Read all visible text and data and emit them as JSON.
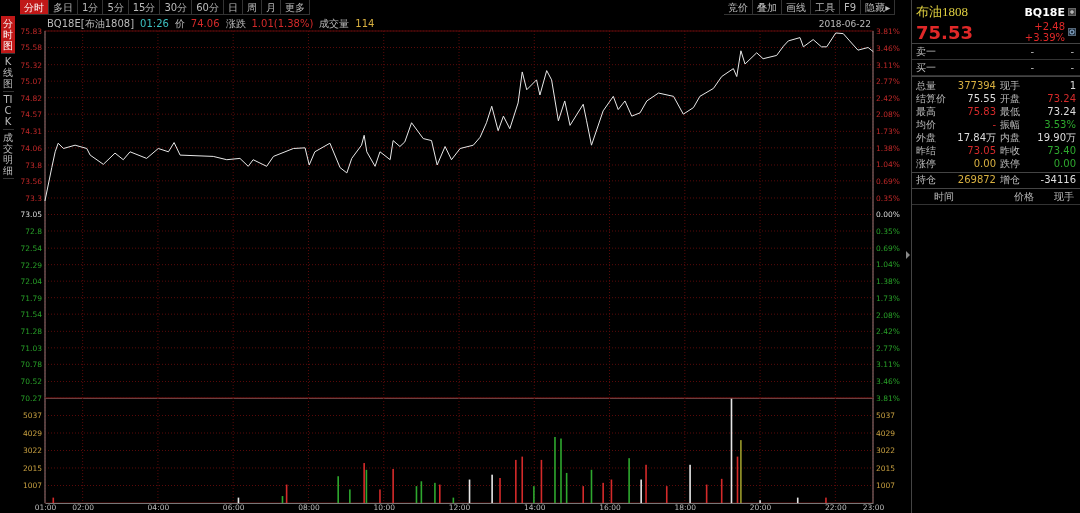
{
  "chart_data": [
    {
      "type": "line",
      "xlim": [
        1,
        23
      ],
      "xticks": [
        {
          "value": 1,
          "label": null
        },
        {
          "value": 2,
          "label": null
        },
        {
          "value": 4,
          "label": null
        },
        {
          "value": 6,
          "label": null
        },
        {
          "value": 8,
          "label": null
        },
        {
          "value": 10,
          "label": null
        },
        {
          "value": 12,
          "label": null
        },
        {
          "value": 14,
          "label": null
        },
        {
          "value": 16,
          "label": null
        },
        {
          "value": 18,
          "label": null
        },
        {
          "value": 20,
          "label": null
        },
        {
          "value": 22,
          "label": null
        },
        {
          "value": 23,
          "label": null
        }
      ],
      "ylim": [
        70.27,
        75.83
      ],
      "yticks": [
        75.83,
        75.58,
        75.32,
        75.07,
        74.82,
        74.57,
        74.31,
        74.06,
        73.8,
        73.56,
        73.3,
        73.05,
        72.8,
        72.54,
        72.29,
        72.04,
        71.79,
        71.54,
        71.28,
        71.03,
        70.78,
        70.52,
        70.27
      ],
      "y2lim": [
        -3.81,
        3.81
      ],
      "y2ticks": [
        {
          "value": 3.81,
          "label": "3.81%"
        },
        {
          "value": 3.46,
          "label": "3.46%"
        },
        {
          "value": 3.11,
          "label": "3.11%"
        },
        {
          "value": 2.77,
          "label": "2.77%"
        },
        {
          "value": 2.42,
          "label": "2.42%"
        },
        {
          "value": 2.08,
          "label": "2.08%"
        },
        {
          "value": 1.73,
          "label": "1.73%"
        },
        {
          "value": 1.38,
          "label": "1.38%"
        },
        {
          "value": 1.04,
          "label": "1.04%"
        },
        {
          "value": 0.69,
          "label": "0.69%"
        },
        {
          "value": 0.35,
          "label": "0.35%"
        },
        {
          "value": 0,
          "label": "0.00%"
        },
        {
          "value": -0.35,
          "label": "0.35%"
        },
        {
          "value": -0.69,
          "label": "0.69%"
        },
        {
          "value": -1.04,
          "label": "1.04%"
        },
        {
          "value": -1.38,
          "label": "1.38%"
        },
        {
          "value": -1.73,
          "label": "1.73%"
        },
        {
          "value": -2.08,
          "label": "2.08%"
        },
        {
          "value": -2.42,
          "label": "2.42%"
        },
        {
          "value": -2.77,
          "label": "2.77%"
        },
        {
          "value": -3.11,
          "label": "3.11%"
        },
        {
          "value": -3.46,
          "label": "3.46%"
        },
        {
          "value": -3.81,
          "label": "3.81%"
        }
      ],
      "tick_labels": "y",
      "grid": true,
      "annotations": [
        "BQ18E[布油1808]",
        "01:26",
        "价",
        "74.06",
        "涨跌",
        "1.01(1.38%)",
        "成交量",
        "114",
        "2018-06-22"
      ],
      "series": [
        {
          "color": "#e8e8e8",
          "x": [
            1.0,
            1.18,
            1.27,
            1.35,
            1.49,
            1.8,
            2.11,
            2.2,
            2.55,
            2.86,
            3.08,
            3.26,
            3.7,
            4.01,
            4.28,
            4.43,
            4.59,
            5.47,
            5.83,
            6.18,
            6.4,
            6.53,
            6.89,
            7.07,
            7.6,
            7.91,
            8.02,
            8.17,
            8.57,
            8.84,
            9.02,
            9.15,
            9.41,
            9.48,
            9.55,
            9.77,
            9.9,
            10.17,
            10.25,
            10.43,
            10.56,
            10.74,
            11.05,
            11.27,
            11.42,
            11.63,
            11.8,
            12.03,
            12.38,
            12.56,
            12.73,
            12.87,
            13.04,
            13.18,
            13.35,
            13.57,
            13.68,
            13.8,
            14.06,
            14.15,
            14.33,
            14.46,
            14.64,
            14.81,
            14.95,
            15.3,
            15.39,
            15.52,
            15.83,
            16.1,
            16.23,
            16.41,
            16.59,
            16.81,
            16.99,
            17.3,
            17.7,
            17.96,
            18.23,
            18.4,
            18.76,
            18.98,
            19.29,
            19.38,
            19.49,
            19.6,
            19.91,
            20.08,
            20.44,
            20.62,
            20.75,
            21.06,
            21.15,
            21.41,
            21.63,
            21.77,
            22.01,
            22.21,
            22.38,
            22.6,
            22.87,
            23.0
          ],
          "values": [
            73.26,
            73.76,
            74.0,
            74.13,
            74.05,
            74.1,
            74.05,
            73.95,
            73.81,
            73.98,
            73.88,
            74.0,
            73.9,
            74.05,
            74.0,
            74.14,
            73.95,
            73.93,
            73.88,
            73.9,
            73.78,
            73.88,
            73.78,
            73.93,
            74.05,
            74.06,
            73.8,
            74.0,
            74.13,
            73.76,
            73.68,
            73.9,
            74.1,
            74.25,
            74.0,
            73.78,
            74.0,
            73.88,
            74.17,
            74.08,
            74.15,
            74.44,
            74.2,
            74.17,
            73.8,
            74.08,
            73.88,
            74.05,
            74.1,
            74.22,
            74.44,
            74.69,
            74.32,
            74.54,
            74.35,
            74.74,
            75.21,
            74.94,
            75.09,
            74.86,
            75.23,
            75.09,
            74.47,
            74.77,
            74.4,
            74.72,
            74.47,
            74.1,
            74.62,
            74.84,
            74.64,
            74.77,
            74.54,
            74.59,
            74.77,
            74.89,
            74.84,
            74.57,
            74.67,
            74.84,
            74.96,
            75.14,
            75.26,
            75.14,
            75.53,
            75.33,
            75.5,
            75.41,
            75.46,
            75.6,
            75.68,
            75.73,
            75.59,
            75.7,
            75.59,
            75.59,
            75.8,
            75.79,
            75.68,
            75.54,
            75.58,
            75.52
          ]
        }
      ]
    },
    {
      "type": "bar",
      "xlim": [
        1,
        23
      ],
      "xticks": [
        {
          "value": 1,
          "label": "01:00"
        },
        {
          "value": 2,
          "label": "02:00"
        },
        {
          "value": 4,
          "label": "04:00"
        },
        {
          "value": 6,
          "label": "06:00"
        },
        {
          "value": 8,
          "label": "08:00"
        },
        {
          "value": 10,
          "label": "10:00"
        },
        {
          "value": 12,
          "label": "12:00"
        },
        {
          "value": 14,
          "label": "14:00"
        },
        {
          "value": 16,
          "label": "16:00"
        },
        {
          "value": 18,
          "label": "18:00"
        },
        {
          "value": 20,
          "label": "20:00"
        },
        {
          "value": 22,
          "label": "22:00"
        },
        {
          "value": 23,
          "label": "23:00"
        }
      ],
      "ylim": [
        0,
        6044
      ],
      "yticks": [
        1007,
        2015,
        3022,
        4029,
        5037
      ],
      "y2lim": [
        0,
        6044
      ],
      "y2ticks": [
        1007,
        2015,
        3022,
        4029,
        5037
      ],
      "grid": true,
      "x": [
        1.22,
        6.14,
        7.31,
        7.42,
        8.79,
        9.1,
        9.48,
        9.54,
        9.9,
        10.25,
        10.87,
        11.0,
        11.36,
        11.49,
        11.85,
        12.28,
        12.88,
        13.09,
        13.51,
        13.68,
        13.99,
        14.19,
        14.55,
        14.71,
        14.86,
        15.3,
        15.52,
        15.83,
        16.05,
        16.52,
        16.84,
        16.97,
        17.52,
        18.14,
        18.58,
        18.98,
        19.24,
        19.4,
        19.49,
        20.0,
        21.0,
        21.75
      ],
      "values": [
        310,
        310,
        400,
        1060,
        1540,
        780,
        2300,
        1910,
        780,
        1960,
        970,
        1250,
        1160,
        1060,
        310,
        1350,
        1630,
        1440,
        2480,
        2670,
        970,
        2480,
        3800,
        3710,
        1730,
        970,
        1910,
        1160,
        1350,
        2580,
        1350,
        2200,
        970,
        2200,
        1060,
        1390,
        6000,
        2670,
        3620,
        160,
        310,
        310
      ],
      "colors": [
        "#d42a2a",
        "#e6e6e6",
        "#2ea82e",
        "#d42a2a",
        "#2ea82e",
        "#2ea82e",
        "#d42a2a",
        "#2ea82e",
        "#d42a2a",
        "#d42a2a",
        "#2ea82e",
        "#2ea82e",
        "#2ea82e",
        "#d42a2a",
        "#2ea82e",
        "#e6e6e6",
        "#e6e6e6",
        "#d42a2a",
        "#d42a2a",
        "#d42a2a",
        "#2ea82e",
        "#d42a2a",
        "#2ea82e",
        "#2ea82e",
        "#2ea82e",
        "#d42a2a",
        "#2ea82e",
        "#d42a2a",
        "#d42a2a",
        "#2ea82e",
        "#e6e6e6",
        "#d42a2a",
        "#d42a2a",
        "#e6e6e6",
        "#d42a2a",
        "#d42a2a",
        "#e6e6e6",
        "#d42a2a",
        "#9a9a2a",
        "#e6e6e6",
        "#e6e6e6",
        "#d42a2a"
      ]
    },
    {
      "type": "other",
      "annotations": [
        "分时",
        "多日",
        "1分",
        "5分",
        "15分",
        "30分",
        "60分",
        "日",
        "周",
        "月",
        "更多"
      ]
    },
    {
      "type": "other",
      "annotations": [
        "竞价",
        "叠加",
        "画线",
        "工具",
        "F9",
        "隐藏▸"
      ]
    },
    {
      "type": "other",
      "annotations": [
        "分时图",
        "K线图",
        "TICK",
        "成交明细"
      ]
    },
    {
      "type": "other",
      "title": "布油1808",
      "subtitle": "BQ18E",
      "annotations": [
        "75.53",
        "+2.48",
        "+3.39%",
        "卖一",
        "-",
        "-",
        "买一",
        "-",
        "-",
        "总量",
        "377394",
        "现手",
        "1",
        "结算价",
        "75.55",
        "开盘",
        "73.24",
        "最高",
        "75.83",
        "最低",
        "73.24",
        "均价",
        "-",
        "振幅",
        "3.53%",
        "外盘",
        "17.84万",
        "内盘",
        "19.90万",
        "昨结",
        "73.05",
        "昨收",
        "73.40",
        "涨停",
        "0.00",
        "跌停",
        "0.00",
        "持仓",
        "269872",
        "增仓",
        "-34116",
        "时间",
        "价格",
        "现手"
      ]
    }
  ]
}
